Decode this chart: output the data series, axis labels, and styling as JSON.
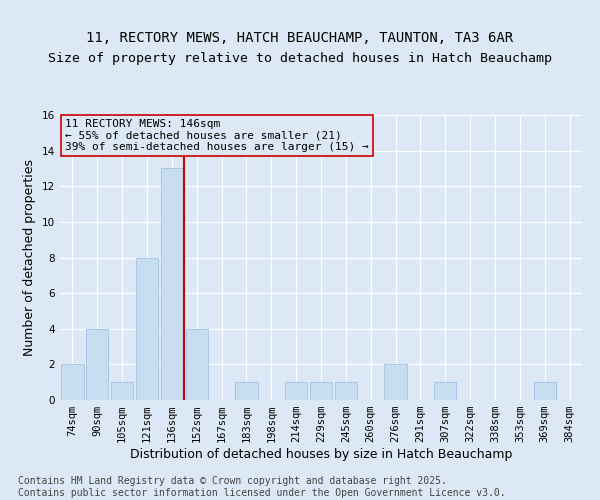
{
  "title_line1": "11, RECTORY MEWS, HATCH BEAUCHAMP, TAUNTON, TA3 6AR",
  "title_line2": "Size of property relative to detached houses in Hatch Beauchamp",
  "xlabel": "Distribution of detached houses by size in Hatch Beauchamp",
  "ylabel": "Number of detached properties",
  "categories": [
    "74sqm",
    "90sqm",
    "105sqm",
    "121sqm",
    "136sqm",
    "152sqm",
    "167sqm",
    "183sqm",
    "198sqm",
    "214sqm",
    "229sqm",
    "245sqm",
    "260sqm",
    "276sqm",
    "291sqm",
    "307sqm",
    "322sqm",
    "338sqm",
    "353sqm",
    "369sqm",
    "384sqm"
  ],
  "values": [
    2,
    4,
    1,
    8,
    13,
    4,
    0,
    1,
    0,
    1,
    1,
    1,
    0,
    2,
    0,
    1,
    0,
    0,
    0,
    1,
    0
  ],
  "bar_color": "#c8ddf0",
  "bar_edgecolor": "#a8c8e8",
  "vline_x_index": 4.5,
  "vline_color": "#cc0000",
  "annotation_text": "11 RECTORY MEWS: 146sqm\n← 55% of detached houses are smaller (21)\n39% of semi-detached houses are larger (15) →",
  "annotation_box_edgecolor": "#cc0000",
  "annotation_box_facecolor": "#dce8f5",
  "ylim": [
    0,
    16
  ],
  "yticks": [
    0,
    2,
    4,
    6,
    8,
    10,
    12,
    14,
    16
  ],
  "footer_line1": "Contains HM Land Registry data © Crown copyright and database right 2025.",
  "footer_line2": "Contains public sector information licensed under the Open Government Licence v3.0.",
  "background_color": "#dce8f5",
  "plot_background_color": "#dce8f5",
  "grid_color": "#ffffff",
  "title_fontsize": 10,
  "subtitle_fontsize": 9.5,
  "axis_label_fontsize": 9,
  "tick_fontsize": 7.5,
  "annotation_fontsize": 8,
  "footer_fontsize": 7
}
